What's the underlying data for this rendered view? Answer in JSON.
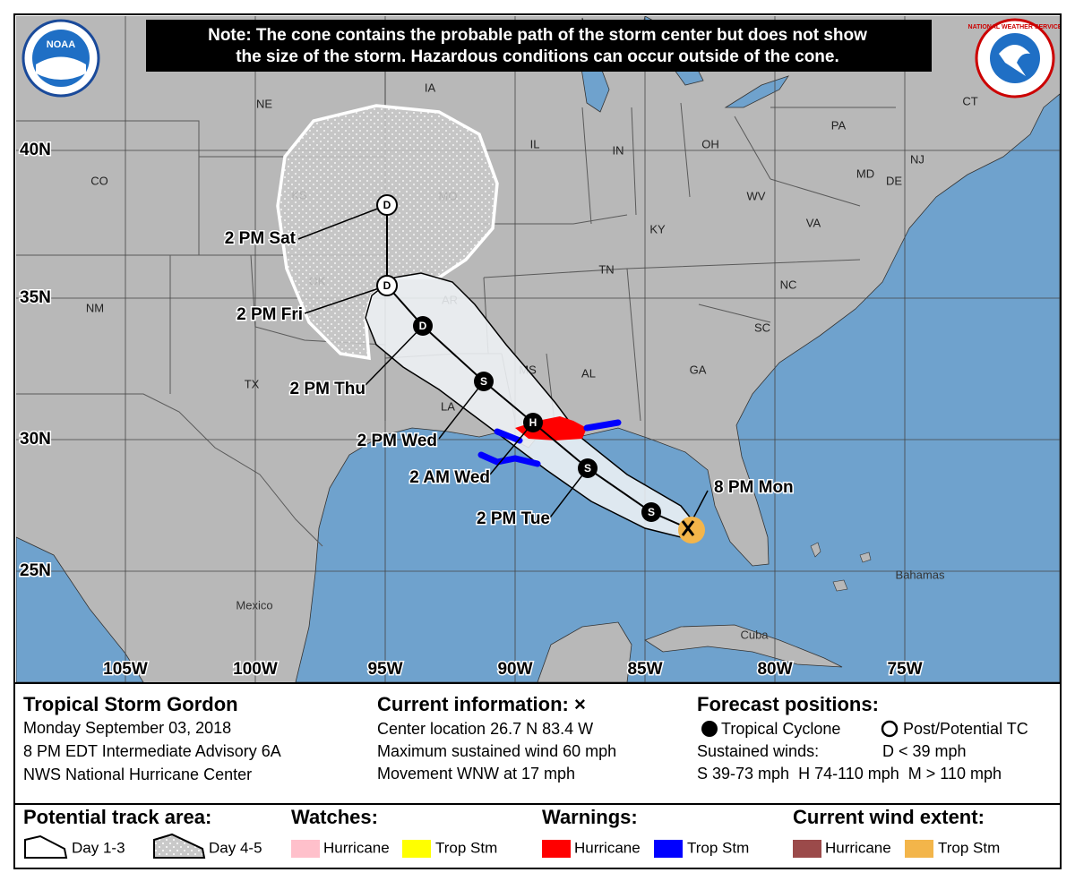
{
  "note": {
    "lines": [
      "Note: The cone contains the probable path of the storm center but does not show",
      "the size of the storm. Hazardous conditions can occur outside of the cone."
    ]
  },
  "logos": {
    "noaa": "NOAA",
    "nws": "NATIONAL WEATHER SERVICE"
  },
  "map": {
    "latitudes": [
      "40N",
      "35N",
      "30N",
      "25N"
    ],
    "longitudes": [
      "105W",
      "100W",
      "95W",
      "90W",
      "85W",
      "80W",
      "75W"
    ],
    "place_labels": [
      "NE",
      "IA",
      "IL",
      "IN",
      "OH",
      "PA",
      "CO",
      "KS",
      "MO",
      "KY",
      "WV",
      "VA",
      "OK",
      "AR",
      "TN",
      "NC",
      "NM",
      "TX",
      "MS",
      "AL",
      "GA",
      "SC",
      "LA",
      "MD",
      "DE",
      "NJ",
      "CT",
      "Mexico",
      "Cuba",
      "Bahamas"
    ],
    "forecast_points": [
      {
        "time": "2 PM Sat",
        "symbol": "D"
      },
      {
        "time": "2 PM Fri",
        "symbol": "D"
      },
      {
        "time": "2 PM Thu",
        "symbol": "D"
      },
      {
        "time": "2 PM Wed",
        "symbol": "S"
      },
      {
        "time": "2 AM Wed",
        "symbol": "H"
      },
      {
        "time": "2 PM Tue",
        "symbol": "S"
      },
      {
        "symbol": "S"
      }
    ],
    "current_position": "8 PM Mon"
  },
  "info": {
    "storm": [
      "Tropical Storm Gordon",
      "Monday September 03, 2018",
      "8 PM EDT Intermediate Advisory 6A",
      "NWS National Hurricane Center"
    ],
    "current": [
      "Current information: ×",
      "Center location 26.7 N 83.4 W",
      "Maximum sustained wind 60 mph",
      "Movement WNW at 17 mph"
    ],
    "forecast": {
      "title": "Forecast positions:",
      "tropical": "Tropical Cyclone",
      "post": "Post/Potential TC",
      "winds_title": "Sustained winds:",
      "d": "D < 39 mph",
      "shm": "S 39-73 mph  H 74-110 mph  M > 110 mph"
    }
  },
  "legend": {
    "track_title": "Potential track area:",
    "day13": "Day 1-3",
    "day45": "Day 4-5",
    "watches_title": "Watches:",
    "watch_hurricane": "Hurricane",
    "watch_ts": "Trop Stm",
    "warnings_title": "Warnings:",
    "warn_hurricane": "Hurricane",
    "warn_ts": "Trop Stm",
    "wind_title": "Current wind extent:",
    "wind_hurricane": "Hurricane",
    "wind_ts": "Trop Stm"
  }
}
